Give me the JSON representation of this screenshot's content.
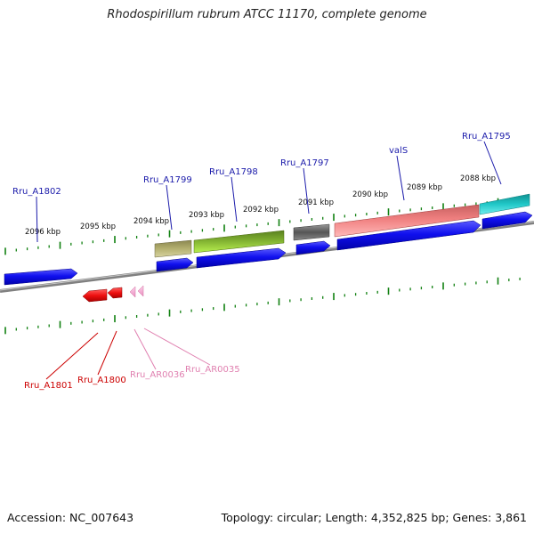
{
  "title": "Rhodospirillum rubrum ATCC 11170, complete genome",
  "footer": {
    "accession": "Accession: NC_007643",
    "topology": "Topology: circular; Length: 4,352,825 bp; Genes: 3,861"
  },
  "colors": {
    "cds_forward": "#1010ee",
    "cds_reverse": "#ee1010",
    "rna_reverse": "#f4a8d4",
    "trna": "#f08080",
    "olive": "#b4b070",
    "green": "#90d030",
    "gray": "#666666",
    "cyan": "#20c8c8",
    "tick": "#108010",
    "backbone": "#808080",
    "label_forward": "#1a1aaa",
    "label_reverse": "#cc0000",
    "label_rna": "#e080b0"
  },
  "scale_labels": [
    "2096 kbp",
    "2095 kbp",
    "2094 kbp",
    "2093 kbp",
    "2092 kbp",
    "2091 kbp",
    "2090 kbp",
    "2089 kbp",
    "2088 kbp"
  ],
  "gene_labels": {
    "forward": [
      "Rru_A1802",
      "Rru_A1799",
      "Rru_A1798",
      "Rru_A1797",
      "valS",
      "Rru_A1795"
    ],
    "reverse": [
      "Rru_A1801",
      "Rru_A1800",
      "Rru_AR0036",
      "Rru_AR0035"
    ]
  }
}
